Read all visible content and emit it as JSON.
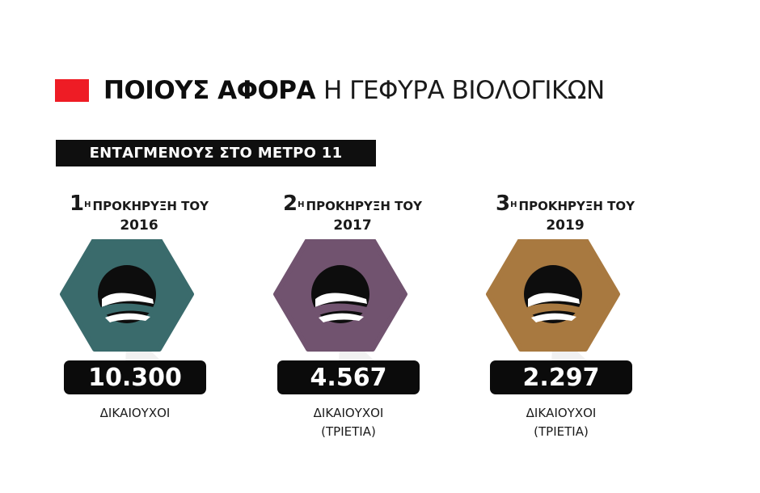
{
  "title": {
    "bold": "ΠΟΙΟΥΣ ΑΦΟΡΑ",
    "light": "Η ΓΕΦΥΡΑ ΒΙΟΛΟΓΙΚΩΝ"
  },
  "subtitle": "ΕΝΤΑΓΜΕΝΟΥΣ ΣΤΟ ΜΕΤΡΟ 11",
  "colors": {
    "accent_red": "#ee1c25",
    "teal": "#3a6b6c",
    "purple": "#71536f",
    "bronze": "#a87940"
  },
  "calls": [
    {
      "num": "1",
      "sup": "Η",
      "label": "ΠΡΟΚΗΡΥΞΗ ΤΟΥ",
      "year": "2016",
      "value": "10.300",
      "caption1": "ΔΙΚΑΙΟΥΧΟΙ",
      "caption2": ""
    },
    {
      "num": "2",
      "sup": "Η",
      "label": "ΠΡΟΚΗΡΥΞΗ ΤΟΥ",
      "year": "2017",
      "value": "4.567",
      "caption1": "ΔΙΚΑΙΟΥΧΟΙ",
      "caption2": "(ΤΡΙΕΤΙΑ)"
    },
    {
      "num": "3",
      "sup": "Η",
      "label": "ΠΡΟΚΗΡΥΞΗ ΤΟΥ",
      "year": "2019",
      "value": "2.297",
      "caption1": "ΔΙΚΑΙΟΥΧΟΙ",
      "caption2": "(ΤΡΙΕΤΙΑ)"
    }
  ]
}
